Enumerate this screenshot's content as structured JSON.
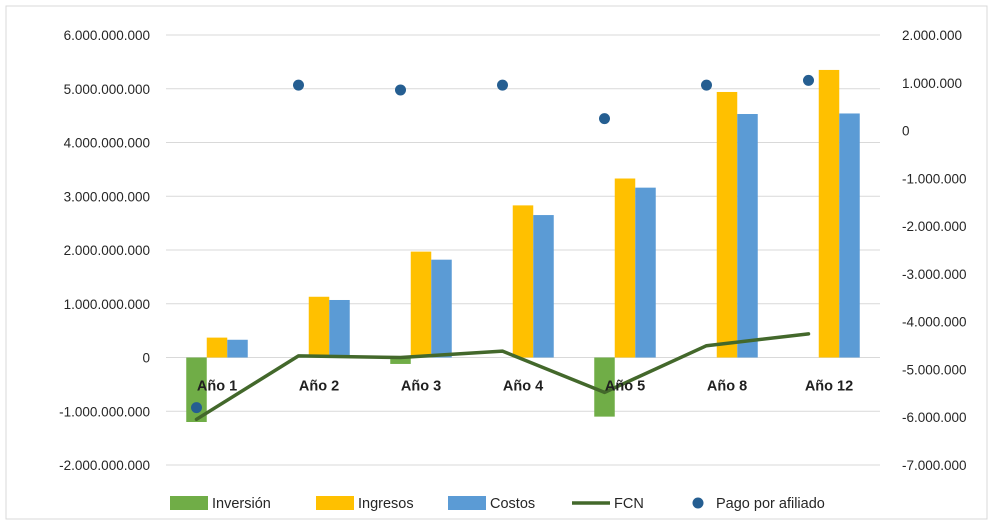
{
  "chart_data": {
    "type": "bar",
    "title": "",
    "categories": [
      "Año 1",
      "Año 2",
      "Año 3",
      "Año 4",
      "Año 5",
      "Año 8",
      "Año 12"
    ],
    "primary_axis": {
      "ylim": [
        -2000000000,
        6000000000
      ],
      "ticks": [
        -2000000000,
        -1000000000,
        0,
        1000000000,
        2000000000,
        3000000000,
        4000000000,
        5000000000,
        6000000000
      ],
      "tick_labels": [
        "-2.000.000.000",
        "-1.000.000.000",
        "0",
        "1.000.000.000",
        "2.000.000.000",
        "3.000.000.000",
        "4.000.000.000",
        "5.000.000.000",
        "6.000.000.000"
      ]
    },
    "secondary_axis": {
      "ylim": [
        -7000000,
        2000000
      ],
      "ticks": [
        -7000000,
        -6000000,
        -5000000,
        -4000000,
        -3000000,
        -2000000,
        -1000000,
        0,
        1000000,
        2000000
      ],
      "tick_labels": [
        "-7.000.000",
        "-6.000.000",
        "-5.000.000",
        "-4.000.000",
        "-3.000.000",
        "-2.000.000",
        "-1.000.000",
        "0",
        "1.000.000",
        "2.000.000"
      ]
    },
    "series": [
      {
        "name": "Inversión",
        "kind": "bar",
        "axis": "primary",
        "color": "#70ad47",
        "values": [
          -1200000000,
          0,
          -120000000,
          0,
          -1100000000,
          0,
          0
        ]
      },
      {
        "name": "Ingresos",
        "kind": "bar",
        "axis": "primary",
        "color": "#ffc000",
        "values": [
          370000000,
          1130000000,
          1970000000,
          2830000000,
          3330000000,
          4940000000,
          5350000000
        ]
      },
      {
        "name": "Costos",
        "kind": "bar",
        "axis": "primary",
        "color": "#5b9bd5",
        "values": [
          330000000,
          1070000000,
          1820000000,
          2650000000,
          3160000000,
          4530000000,
          4540000000
        ]
      },
      {
        "name": "FCN",
        "kind": "line",
        "axis": "primary",
        "color": "#43682b",
        "values": [
          -1150000000,
          30000000,
          0,
          120000000,
          -650000000,
          220000000,
          440000000
        ]
      },
      {
        "name": "Pago por afiliado",
        "kind": "scatter",
        "axis": "secondary",
        "color": "#255e91",
        "values": [
          -5800000,
          950000,
          850000,
          950000,
          250000,
          950000,
          1050000
        ]
      }
    ],
    "grid": true,
    "legend_position": "bottom"
  },
  "colors": {
    "grid": "#d9d9d9",
    "border": "#d9d9d9",
    "background": "#ffffff"
  }
}
